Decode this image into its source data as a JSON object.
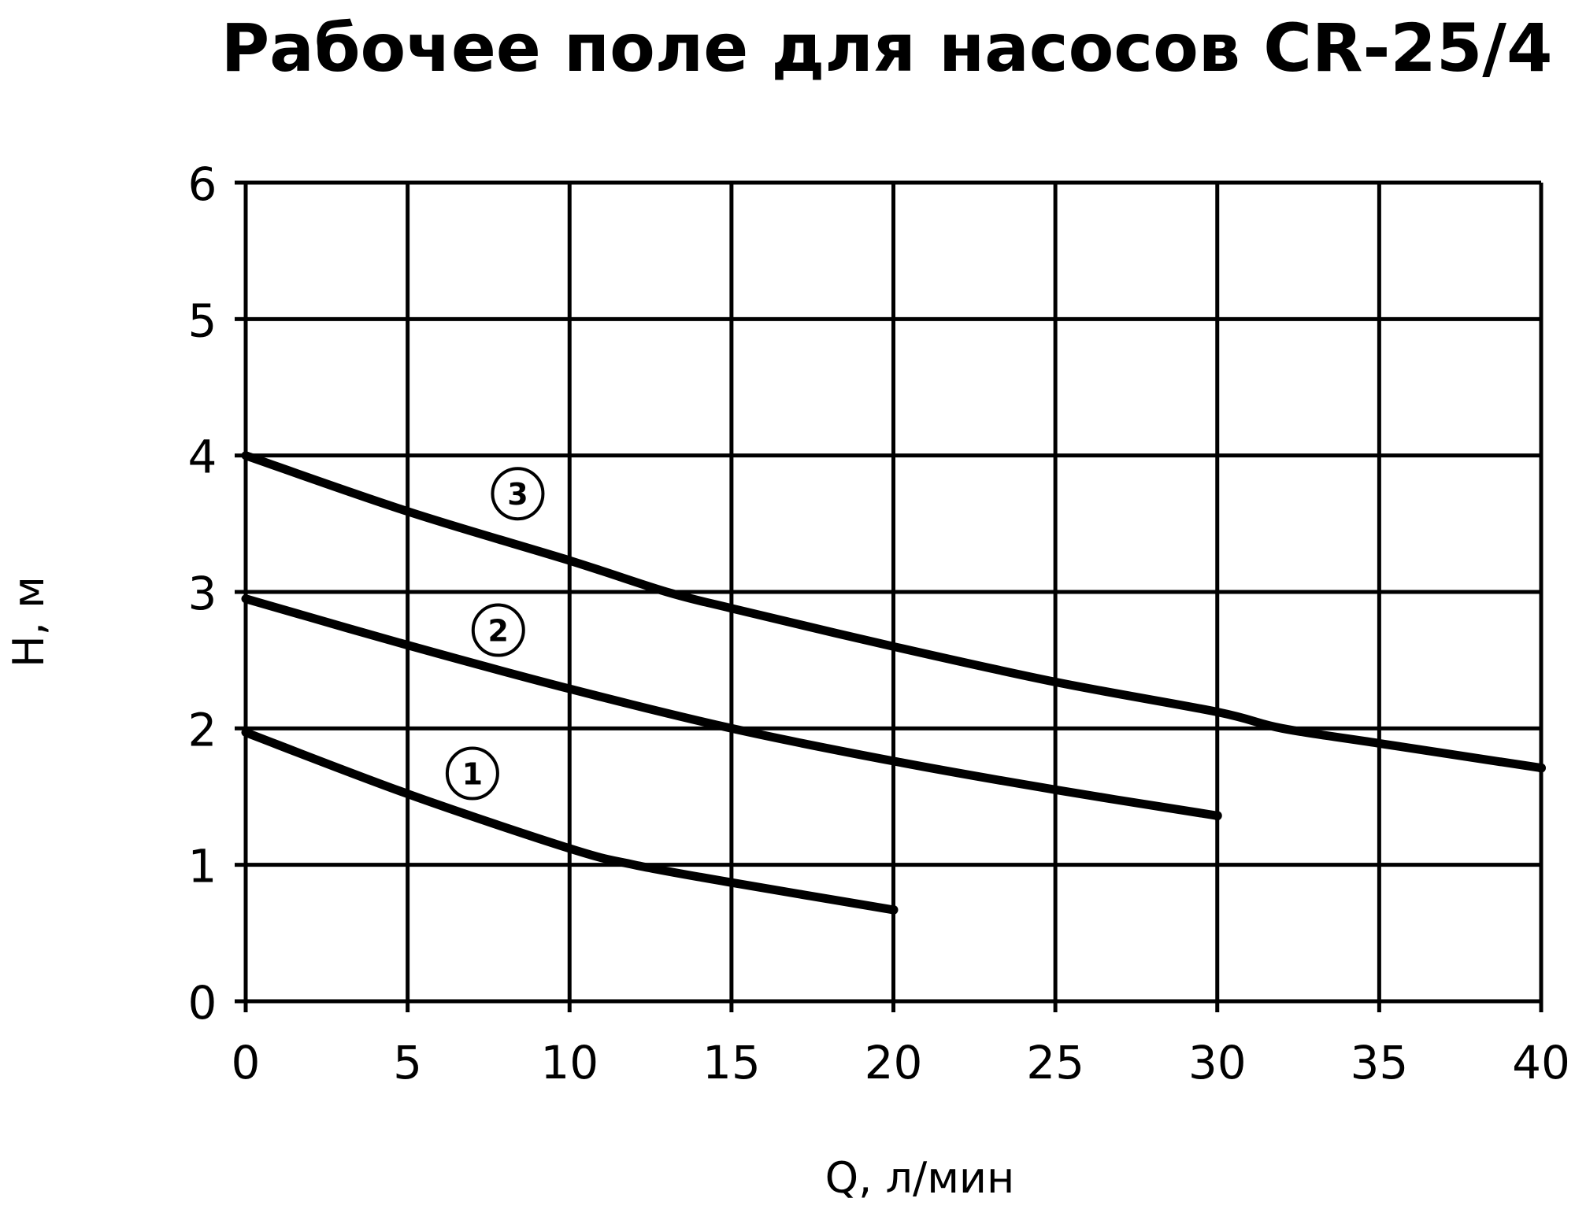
{
  "chart_data": {
    "type": "line",
    "title": "Рабочее поле для насосов CR-25/4",
    "xlabel": "Q, л/мин",
    "ylabel": "H, м",
    "xlim": [
      0,
      40
    ],
    "ylim": [
      0,
      6
    ],
    "xticks": [
      "0",
      "5",
      "10",
      "15",
      "20",
      "25",
      "30",
      "35",
      "40"
    ],
    "yticks": [
      "0",
      "1",
      "2",
      "3",
      "4",
      "5",
      "6"
    ],
    "grid": true,
    "series": [
      {
        "name": "1",
        "x": [
          0,
          5,
          10,
          12,
          15,
          20
        ],
        "y": [
          1.97,
          1.52,
          1.12,
          1.0,
          0.87,
          0.67
        ],
        "label_at": [
          7.0,
          1.67
        ]
      },
      {
        "name": "2",
        "x": [
          0,
          5,
          10,
          15,
          20,
          25,
          30
        ],
        "y": [
          2.95,
          2.61,
          2.29,
          2.0,
          1.76,
          1.55,
          1.36
        ],
        "label_at": [
          7.8,
          2.72
        ]
      },
      {
        "name": "3",
        "x": [
          0,
          5,
          10,
          13,
          15,
          20,
          25,
          30,
          32,
          35,
          40
        ],
        "y": [
          4.0,
          3.59,
          3.23,
          3.0,
          2.88,
          2.6,
          2.34,
          2.12,
          2.0,
          1.89,
          1.71
        ],
        "label_at": [
          8.4,
          3.72
        ]
      }
    ]
  }
}
